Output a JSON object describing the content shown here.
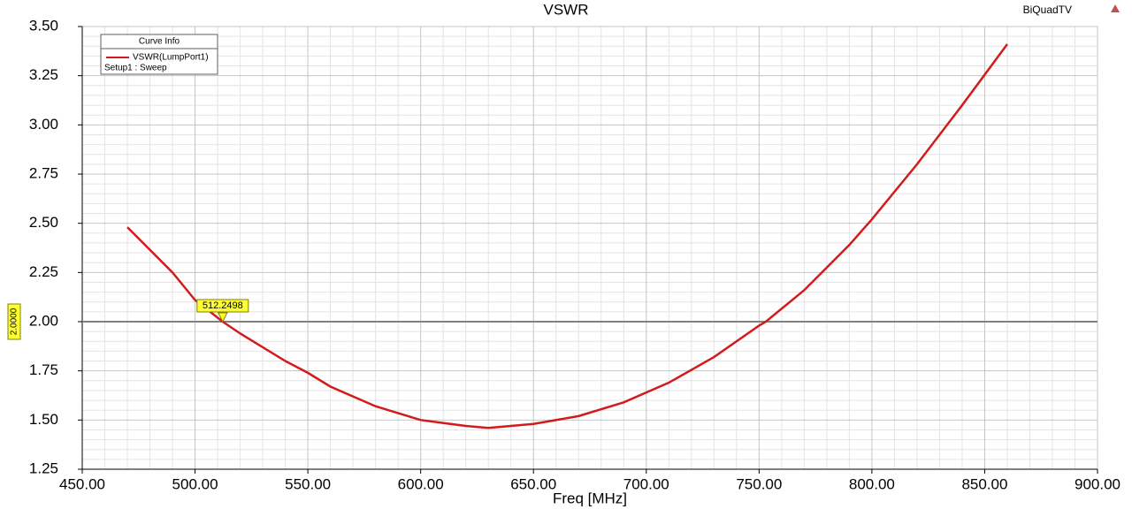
{
  "chart_data": {
    "type": "line",
    "title": "VSWR",
    "project": "BiQuadTV",
    "x_label": "Freq [MHz]",
    "x": [
      470,
      490,
      500,
      512.2498,
      520,
      540,
      550,
      560,
      580,
      600,
      620,
      630,
      650,
      670,
      690,
      710,
      730,
      750,
      753,
      770,
      790,
      800,
      820,
      840,
      860
    ],
    "series": [
      {
        "name": "VSWR(LumpPort1)",
        "color": "#d21c1c",
        "values": [
          2.48,
          2.25,
          2.11,
          2.0,
          1.94,
          1.8,
          1.74,
          1.67,
          1.57,
          1.5,
          1.47,
          1.46,
          1.48,
          1.52,
          1.59,
          1.69,
          1.82,
          1.98,
          2.0,
          2.16,
          2.39,
          2.52,
          2.8,
          3.1,
          3.41
        ]
      }
    ],
    "legend": {
      "title": "Curve Info",
      "setup": "Setup1 : Sweep"
    },
    "xlim": [
      450,
      900
    ],
    "xticks": [
      {
        "value": 450,
        "label": "450.00"
      },
      {
        "value": 500,
        "label": "500.00"
      },
      {
        "value": 550,
        "label": "550.00"
      },
      {
        "value": 600,
        "label": "600.00"
      },
      {
        "value": 650,
        "label": "650.00"
      },
      {
        "value": 700,
        "label": "700.00"
      },
      {
        "value": 750,
        "label": "750.00"
      },
      {
        "value": 800,
        "label": "800.00"
      },
      {
        "value": 850,
        "label": "850.00"
      },
      {
        "value": 900,
        "label": "900.00"
      }
    ],
    "ylim": [
      1.25,
      3.5
    ],
    "yticks": [
      {
        "value": 1.25,
        "label": "1.25"
      },
      {
        "value": 1.5,
        "label": "1.50"
      },
      {
        "value": 1.75,
        "label": "1.75"
      },
      {
        "value": 2,
        "label": "2.00"
      },
      {
        "value": 2.25,
        "label": "2.25"
      },
      {
        "value": 2.5,
        "label": "2.50"
      },
      {
        "value": 2.75,
        "label": "2.75"
      },
      {
        "value": 3,
        "label": "3.00"
      },
      {
        "value": 3.25,
        "label": "3.25"
      },
      {
        "value": 3.5,
        "label": "3.50"
      }
    ],
    "grid": true,
    "hline": {
      "value": 2,
      "label": "2.0000"
    },
    "marker_x": 512.2498,
    "marker_y": 2.0
  }
}
